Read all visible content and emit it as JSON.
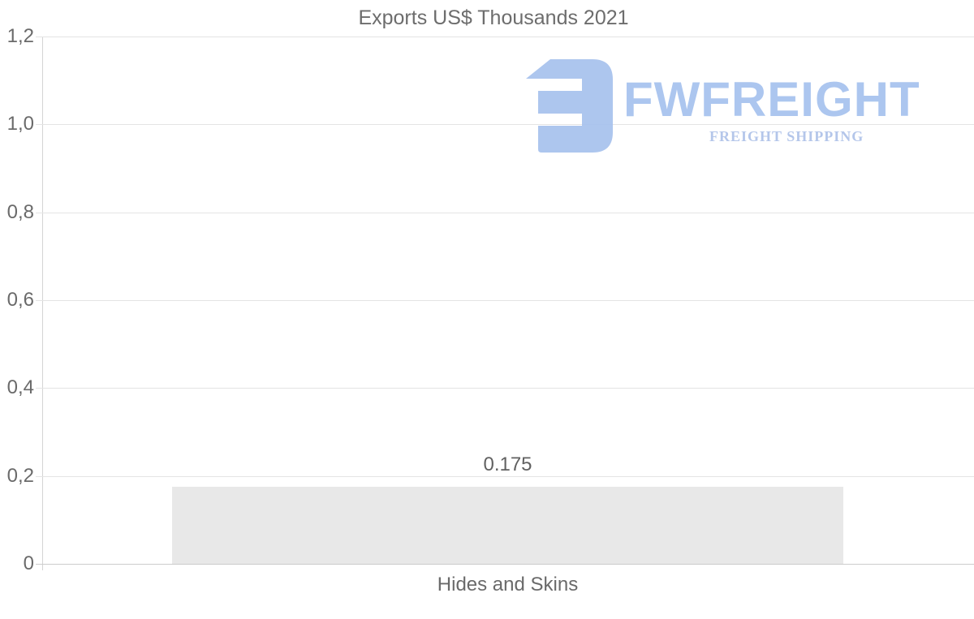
{
  "chart_data": {
    "type": "bar",
    "title": "Exports US$ Thousands 2021",
    "categories": [
      "Hides and Skins"
    ],
    "values": [
      0.175
    ],
    "value_labels": [
      "0.175"
    ],
    "xlabel": "",
    "ylabel": "",
    "ylim": [
      0,
      1.2
    ],
    "ytick_step": 0.2,
    "ytick_labels": [
      "1,2",
      "1,0",
      "0,8",
      "0,6",
      "0,4",
      "0,2",
      "0"
    ],
    "decimal_separator_axis": "comma",
    "grid": true,
    "legend_position": "none",
    "bar_color": "#e8e8e8"
  },
  "watermark": {
    "brand": "FWFREIGHT",
    "tagline": "FREIGHT SHIPPING"
  },
  "colors": {
    "title_text": "#6d6d6d",
    "axis_text": "#6a6a6a",
    "gridline": "#e4e4e4",
    "zero_line": "#cccccc",
    "bar_fill": "#e8e8e8",
    "logo_blue": "#a8c3ef",
    "tagline_blue": "#b1c4e9"
  }
}
